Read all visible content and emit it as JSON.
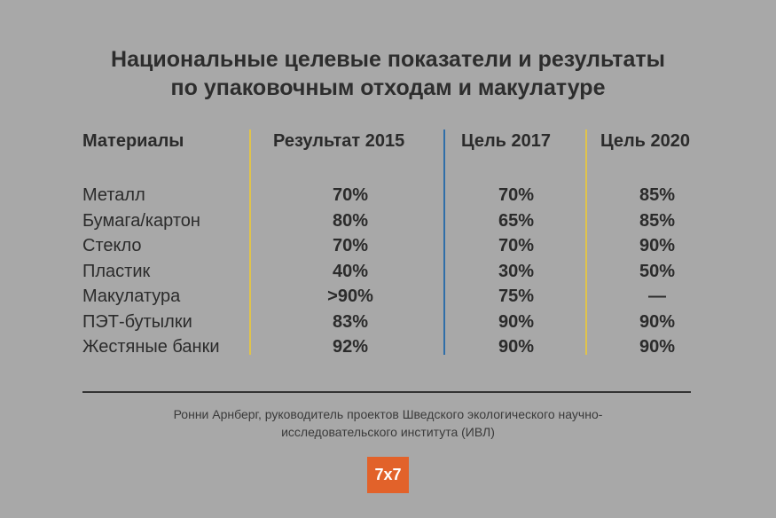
{
  "title": {
    "line1": "Национальные целевые показатели и результаты",
    "line2": "по упаковочным отходам и макулатуре"
  },
  "table": {
    "headers": [
      "Материалы",
      "Результат 2015",
      "Цель 2017",
      "Цель 2020"
    ],
    "rows": [
      {
        "material": "Металл",
        "result_2015": "70%",
        "target_2017": "70%",
        "target_2020": "85%"
      },
      {
        "material": "Бумага/картон",
        "result_2015": "80%",
        "target_2017": "65%",
        "target_2020": "85%"
      },
      {
        "material": "Стекло",
        "result_2015": "70%",
        "target_2017": "70%",
        "target_2020": "90%"
      },
      {
        "material": "Пластик",
        "result_2015": "40%",
        "target_2017": "30%",
        "target_2020": "50%"
      },
      {
        "material": "Макулатура",
        "result_2015": ">90%",
        "target_2017": "75%",
        "target_2020": "—"
      },
      {
        "material": "ПЭТ-бутылки",
        "result_2015": "83%",
        "target_2017": "90%",
        "target_2020": "90%"
      },
      {
        "material": "Жестяные банки",
        "result_2015": "92%",
        "target_2017": "90%",
        "target_2020": "90%"
      }
    ]
  },
  "source": {
    "line1": "Ронни Арнберг, руководитель проектов Шведского экологического научно-",
    "line2": "исследовательского института (ИВЛ)"
  },
  "logo": "7x7",
  "colors": {
    "background": "#a8a8a8",
    "divider_yellow": "#e0c34a",
    "divider_blue": "#2f6ea8",
    "logo_orange": "#e2622a"
  }
}
